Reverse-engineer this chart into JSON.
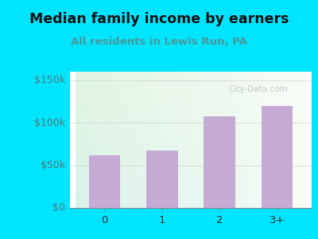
{
  "title": "Median family income by earners",
  "subtitle": "All residents in Lewis Run, PA",
  "categories": [
    "0",
    "1",
    "2",
    "3+"
  ],
  "values": [
    62000,
    67000,
    108000,
    120000
  ],
  "bar_color": "#c4aad4",
  "title_fontsize": 12.5,
  "subtitle_fontsize": 9.5,
  "subtitle_color": "#4a9999",
  "title_color": "#111111",
  "yticks": [
    0,
    50000,
    100000,
    150000
  ],
  "ytick_labels": [
    "$0",
    "$50k",
    "$100k",
    "$150k"
  ],
  "ylim": [
    0,
    160000
  ],
  "bg_outer_color": "#00e5ff",
  "watermark": "City-Data.com",
  "watermark_color": "#b0b8c0"
}
